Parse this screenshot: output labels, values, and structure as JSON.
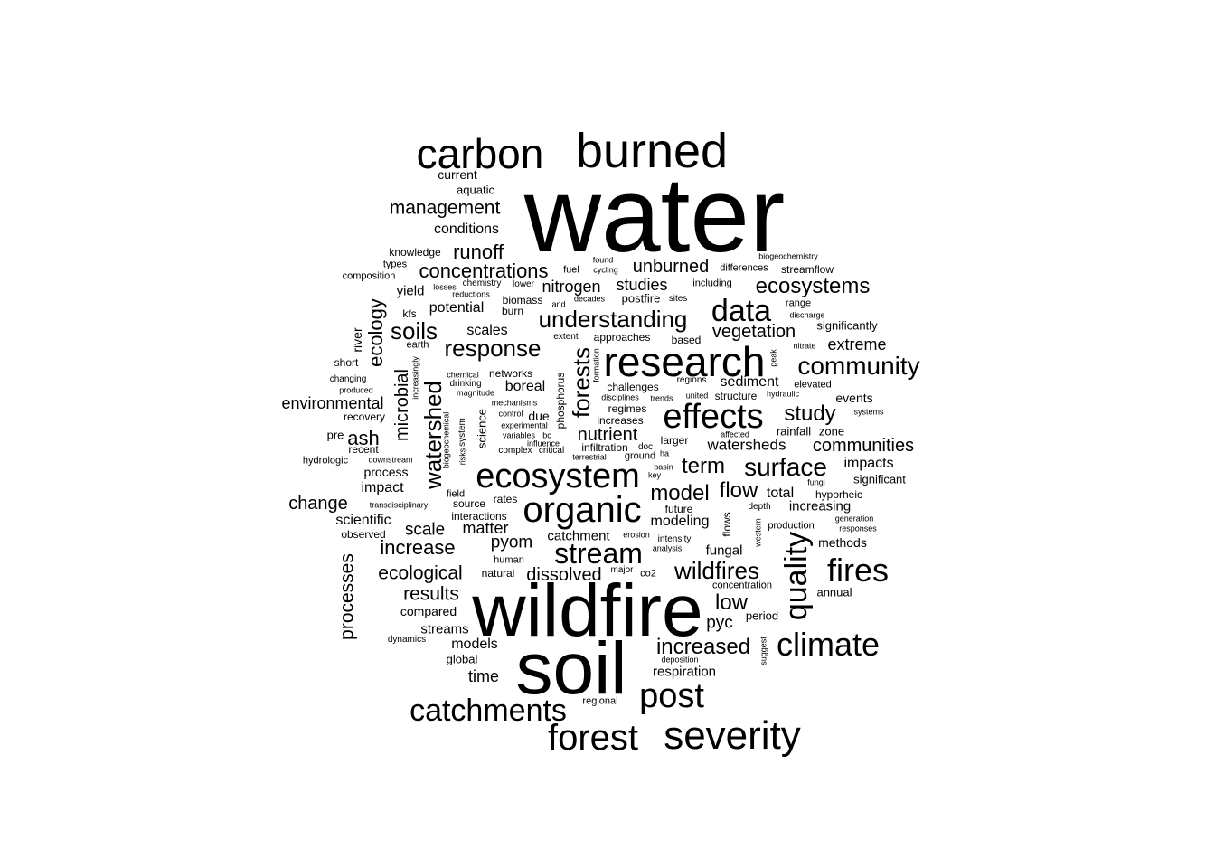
{
  "text_color": "#000000",
  "background_color": "#ffffff",
  "words": [
    {
      "text": "water",
      "weight": 118
    },
    {
      "text": "wildfire",
      "weight": 82
    },
    {
      "text": "soil",
      "weight": 82
    },
    {
      "text": "research",
      "weight": 46
    },
    {
      "text": "burned",
      "weight": 54
    },
    {
      "text": "carbon",
      "weight": 46
    },
    {
      "text": "severity",
      "weight": 44
    },
    {
      "text": "forest",
      "weight": 40
    },
    {
      "text": "ecosystem",
      "weight": 38
    },
    {
      "text": "organic",
      "weight": 40
    },
    {
      "text": "effects",
      "weight": 38
    },
    {
      "text": "catchments",
      "weight": 34
    },
    {
      "text": "post",
      "weight": 38
    },
    {
      "text": "climate",
      "weight": 36
    },
    {
      "text": "fires",
      "weight": 36
    },
    {
      "text": "data",
      "weight": 34
    },
    {
      "text": "stream",
      "weight": 32
    },
    {
      "text": "quality",
      "weight": 34
    },
    {
      "text": "community",
      "weight": 28
    },
    {
      "text": "understanding",
      "weight": 26
    },
    {
      "text": "wildfires",
      "weight": 26
    },
    {
      "text": "surface",
      "weight": 28
    },
    {
      "text": "response",
      "weight": 26
    },
    {
      "text": "soils",
      "weight": 26
    },
    {
      "text": "watershed",
      "weight": 26
    },
    {
      "text": "forests",
      "weight": 26
    },
    {
      "text": "increased",
      "weight": 24
    },
    {
      "text": "ecosystems",
      "weight": 24
    },
    {
      "text": "model",
      "weight": 24
    },
    {
      "text": "flow",
      "weight": 24
    },
    {
      "text": "term",
      "weight": 24
    },
    {
      "text": "study",
      "weight": 24
    },
    {
      "text": "concentrations",
      "weight": 22
    },
    {
      "text": "management",
      "weight": 21
    },
    {
      "text": "runoff",
      "weight": 22
    },
    {
      "text": "unburned",
      "weight": 20
    },
    {
      "text": "ecology",
      "weight": 22
    },
    {
      "text": "low",
      "weight": 24
    },
    {
      "text": "ash",
      "weight": 22
    },
    {
      "text": "microbial",
      "weight": 20
    },
    {
      "text": "processes",
      "weight": 21
    },
    {
      "text": "increase",
      "weight": 22
    },
    {
      "text": "ecological",
      "weight": 21
    },
    {
      "text": "results",
      "weight": 21
    },
    {
      "text": "vegetation",
      "weight": 20
    },
    {
      "text": "communities",
      "weight": 20
    },
    {
      "text": "nutrient",
      "weight": 20
    },
    {
      "text": "change",
      "weight": 20
    },
    {
      "text": "dissolved",
      "weight": 20
    },
    {
      "text": "pyom",
      "weight": 19
    },
    {
      "text": "scale",
      "weight": 19
    },
    {
      "text": "matter",
      "weight": 18
    },
    {
      "text": "nitrogen",
      "weight": 18
    },
    {
      "text": "studies",
      "weight": 18
    },
    {
      "text": "extreme",
      "weight": 18
    },
    {
      "text": "watersheds",
      "weight": 17
    },
    {
      "text": "pyc",
      "weight": 19
    },
    {
      "text": "time",
      "weight": 18
    },
    {
      "text": "environmental",
      "weight": 18
    },
    {
      "text": "sediment",
      "weight": 16
    },
    {
      "text": "impacts",
      "weight": 16
    },
    {
      "text": "modeling",
      "weight": 16
    },
    {
      "text": "catchment",
      "weight": 15
    },
    {
      "text": "fungal",
      "weight": 15
    },
    {
      "text": "total",
      "weight": 16
    },
    {
      "text": "increasing",
      "weight": 15
    },
    {
      "text": "boreal",
      "weight": 16
    },
    {
      "text": "potential",
      "weight": 16
    },
    {
      "text": "scales",
      "weight": 16
    },
    {
      "text": "conditions",
      "weight": 16
    },
    {
      "text": "impact",
      "weight": 16
    },
    {
      "text": "scientific",
      "weight": 16
    },
    {
      "text": "models",
      "weight": 16
    },
    {
      "text": "streams",
      "weight": 15
    },
    {
      "text": "respiration",
      "weight": 15
    },
    {
      "text": "yield",
      "weight": 15
    },
    {
      "text": "current",
      "weight": 14
    },
    {
      "text": "aquatic",
      "weight": 13
    },
    {
      "text": "compared",
      "weight": 14
    },
    {
      "text": "global",
      "weight": 13
    },
    {
      "text": "process",
      "weight": 14
    },
    {
      "text": "events",
      "weight": 14
    },
    {
      "text": "methods",
      "weight": 14
    },
    {
      "text": "significantly",
      "weight": 13
    },
    {
      "text": "significant",
      "weight": 13
    },
    {
      "text": "annual",
      "weight": 13
    },
    {
      "text": "period",
      "weight": 13
    },
    {
      "text": "rainfall",
      "weight": 13
    },
    {
      "text": "zone",
      "weight": 13
    },
    {
      "text": "hyporheic",
      "weight": 12
    },
    {
      "text": "knowledge",
      "weight": 12
    },
    {
      "text": "composition",
      "weight": 11
    },
    {
      "text": "types",
      "weight": 11
    },
    {
      "text": "kfs",
      "weight": 12
    },
    {
      "text": "river",
      "weight": 14
    },
    {
      "text": "short",
      "weight": 12
    },
    {
      "text": "recovery",
      "weight": 12
    },
    {
      "text": "pre",
      "weight": 13
    },
    {
      "text": "recent",
      "weight": 12
    },
    {
      "text": "hydrologic",
      "weight": 11
    },
    {
      "text": "observed",
      "weight": 12
    },
    {
      "text": "fuel",
      "weight": 11
    },
    {
      "text": "cycling",
      "weight": 9
    },
    {
      "text": "found",
      "weight": 9
    },
    {
      "text": "differences",
      "weight": 11
    },
    {
      "text": "biogeochemistry",
      "weight": 9
    },
    {
      "text": "streamflow",
      "weight": 12
    },
    {
      "text": "including",
      "weight": 11
    },
    {
      "text": "postfire",
      "weight": 13
    },
    {
      "text": "sites",
      "weight": 10
    },
    {
      "text": "burn",
      "weight": 12
    },
    {
      "text": "biomass",
      "weight": 12
    },
    {
      "text": "lower",
      "weight": 10
    },
    {
      "text": "chemistry",
      "weight": 10
    },
    {
      "text": "losses",
      "weight": 9
    },
    {
      "text": "reductions",
      "weight": 9
    },
    {
      "text": "land",
      "weight": 9
    },
    {
      "text": "decades",
      "weight": 9
    },
    {
      "text": "approaches",
      "weight": 12
    },
    {
      "text": "extent",
      "weight": 10
    },
    {
      "text": "based",
      "weight": 12
    },
    {
      "text": "range",
      "weight": 11
    },
    {
      "text": "discharge",
      "weight": 9
    },
    {
      "text": "nitrate",
      "weight": 9
    },
    {
      "text": "peak",
      "weight": 9
    },
    {
      "text": "earth",
      "weight": 11
    },
    {
      "text": "changing",
      "weight": 10
    },
    {
      "text": "produced",
      "weight": 9
    },
    {
      "text": "increasingly",
      "weight": 9
    },
    {
      "text": "chemical",
      "weight": 9
    },
    {
      "text": "drinking",
      "weight": 10
    },
    {
      "text": "networks",
      "weight": 12
    },
    {
      "text": "magnitude",
      "weight": 9
    },
    {
      "text": "mechanisms",
      "weight": 9
    },
    {
      "text": "control",
      "weight": 9
    },
    {
      "text": "due",
      "weight": 14
    },
    {
      "text": "experimental",
      "weight": 9
    },
    {
      "text": "variables",
      "weight": 9
    },
    {
      "text": "bc",
      "weight": 9
    },
    {
      "text": "influence",
      "weight": 9
    },
    {
      "text": "complex",
      "weight": 10
    },
    {
      "text": "critical",
      "weight": 10
    },
    {
      "text": "phosphorus",
      "weight": 12
    },
    {
      "text": "formation",
      "weight": 9
    },
    {
      "text": "challenges",
      "weight": 12
    },
    {
      "text": "disciplines",
      "weight": 9
    },
    {
      "text": "trends",
      "weight": 9
    },
    {
      "text": "regimes",
      "weight": 12
    },
    {
      "text": "increases",
      "weight": 12
    },
    {
      "text": "regions",
      "weight": 10
    },
    {
      "text": "united",
      "weight": 9
    },
    {
      "text": "structure",
      "weight": 12
    },
    {
      "text": "hydraulic",
      "weight": 9
    },
    {
      "text": "elevated",
      "weight": 11
    },
    {
      "text": "systems",
      "weight": 9
    },
    {
      "text": "affected",
      "weight": 9
    },
    {
      "text": "infiltration",
      "weight": 12
    },
    {
      "text": "doc",
      "weight": 10
    },
    {
      "text": "larger",
      "weight": 12
    },
    {
      "text": "ha",
      "weight": 9
    },
    {
      "text": "terrestrial",
      "weight": 9
    },
    {
      "text": "ground",
      "weight": 11
    },
    {
      "text": "basin",
      "weight": 9
    },
    {
      "text": "key",
      "weight": 9
    },
    {
      "text": "downstream",
      "weight": 9
    },
    {
      "text": "biogeochemical",
      "weight": 9
    },
    {
      "text": "risks",
      "weight": 9
    },
    {
      "text": "system",
      "weight": 10
    },
    {
      "text": "science",
      "weight": 13
    },
    {
      "text": "field",
      "weight": 11
    },
    {
      "text": "transdisciplinary",
      "weight": 9
    },
    {
      "text": "source",
      "weight": 12
    },
    {
      "text": "rates",
      "weight": 12
    },
    {
      "text": "interactions",
      "weight": 12
    },
    {
      "text": "future",
      "weight": 12
    },
    {
      "text": "depth",
      "weight": 10
    },
    {
      "text": "production",
      "weight": 11
    },
    {
      "text": "generation",
      "weight": 9
    },
    {
      "text": "responses",
      "weight": 9
    },
    {
      "text": "flows",
      "weight": 12
    },
    {
      "text": "western",
      "weight": 9
    },
    {
      "text": "fungi",
      "weight": 9
    },
    {
      "text": "erosion",
      "weight": 9
    },
    {
      "text": "intensity",
      "weight": 10
    },
    {
      "text": "analysis",
      "weight": 9
    },
    {
      "text": "human",
      "weight": 11
    },
    {
      "text": "natural",
      "weight": 12
    },
    {
      "text": "major",
      "weight": 10
    },
    {
      "text": "co2",
      "weight": 11
    },
    {
      "text": "concentration",
      "weight": 11
    },
    {
      "text": "dynamics",
      "weight": 10
    },
    {
      "text": "deposition",
      "weight": 9
    },
    {
      "text": "suggest",
      "weight": 9
    },
    {
      "text": "regional",
      "weight": 11
    }
  ]
}
